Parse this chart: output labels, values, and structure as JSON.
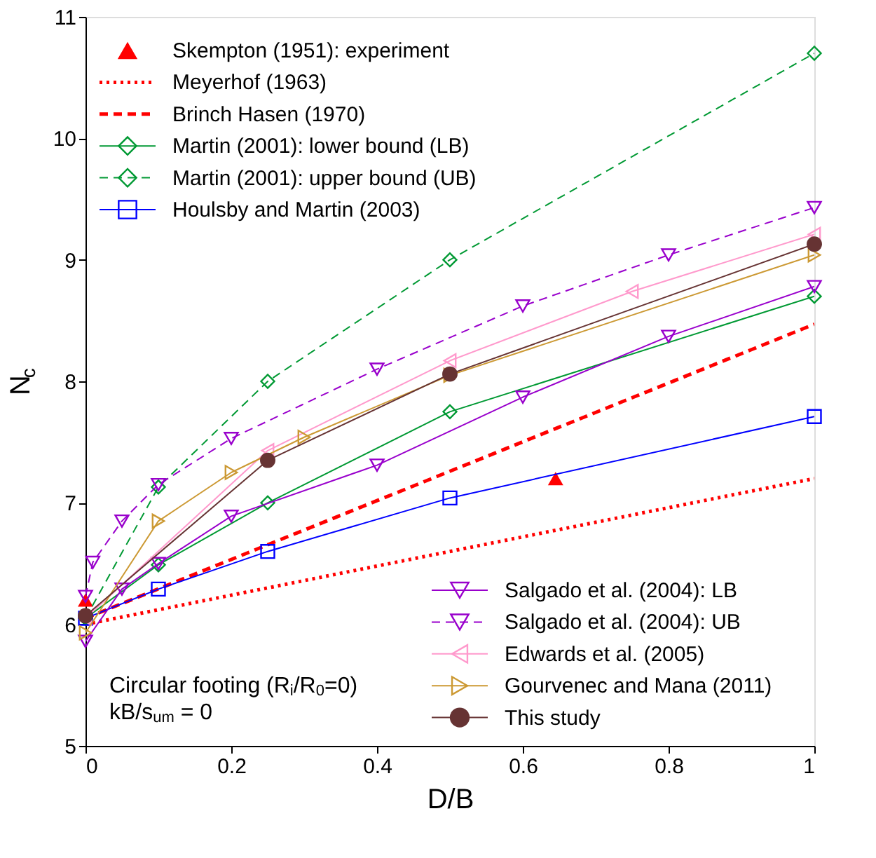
{
  "chart_data": {
    "type": "line",
    "xlabel": "D/B",
    "ylabel": "N$_{c}$",
    "xlim": [
      0,
      1
    ],
    "ylim": [
      5,
      11
    ],
    "xticks": [
      0,
      0.2,
      0.4,
      0.6,
      0.8,
      1
    ],
    "yticks": [
      5,
      6,
      7,
      8,
      9,
      10,
      11
    ],
    "grid": false,
    "legend": [
      "top left",
      "bottom right"
    ],
    "annotations": [
      "Circular footing (R$_{i}$/R$_{0}$=0)",
      "kB/s$_{um}$ = 0"
    ],
    "series": [
      {
        "name": "Skempton (1951): experiment",
        "type": "scatter",
        "marker": "triangle",
        "color": "#ff0000",
        "x": [
          0,
          0.645
        ],
        "values": [
          6.2,
          7.2
        ]
      },
      {
        "name": "Meyerhof (1963)",
        "marker": "none",
        "line_style": "dotted",
        "color": "#ff0000",
        "x": [
          0,
          1
        ],
        "values": [
          6.0,
          7.2
        ]
      },
      {
        "name": "Brinch Hasen (1970)",
        "marker": "none",
        "line_style": "dashed",
        "color": "#ff0000",
        "x": [
          0,
          1
        ],
        "values": [
          6.05,
          8.47
        ]
      },
      {
        "name": "Martin (2001): lower bound (LB)",
        "marker": "diamond",
        "line_style": "solid",
        "color": "#009933",
        "x": [
          0,
          0.1,
          0.25,
          0.5,
          1
        ],
        "values": [
          6.05,
          6.49,
          7.0,
          7.75,
          8.7
        ]
      },
      {
        "name": "Martin (2001): upper bound (UB)",
        "marker": "diamond",
        "line_style": "dashed",
        "color": "#009933",
        "x": [
          0,
          0.1,
          0.25,
          0.5,
          1
        ],
        "values": [
          6.05,
          7.13,
          8.0,
          9.0,
          10.7
        ]
      },
      {
        "name": "Houlsby and Martin (2003)",
        "marker": "square",
        "line_style": "solid",
        "color": "#0000ff",
        "x": [
          0,
          0.1,
          0.25,
          0.5,
          1
        ],
        "values": [
          6.05,
          6.29,
          6.6,
          7.04,
          7.71
        ]
      },
      {
        "name": "Salgado et al. (2004): LB",
        "marker": "triangle-down",
        "line_style": "solid",
        "color": "#9900cc",
        "x": [
          0,
          0.05,
          0.1,
          0.2,
          0.4,
          0.6,
          0.8,
          1
        ],
        "values": [
          5.86,
          6.29,
          6.5,
          6.89,
          7.31,
          7.87,
          8.37,
          8.78
        ]
      },
      {
        "name": "Salgado et al. (2004): UB",
        "marker": "triangle-down",
        "line_style": "dashed",
        "color": "#9900cc",
        "x": [
          0,
          0.01,
          0.05,
          0.1,
          0.2,
          0.4,
          0.6,
          0.8,
          1
        ],
        "values": [
          6.23,
          6.51,
          6.85,
          7.15,
          7.53,
          8.1,
          8.62,
          9.04,
          9.43
        ]
      },
      {
        "name": "Edwards et al. (2005)",
        "marker": "triangle-left",
        "line_style": "solid",
        "color": "#ff99cc",
        "x": [
          0,
          0.25,
          0.5,
          0.75,
          1
        ],
        "values": [
          6.05,
          7.43,
          8.17,
          8.74,
          9.21
        ]
      },
      {
        "name": "Gourvenec and Mana (2011)",
        "marker": "triangle-right",
        "line_style": "solid",
        "color": "#cc9933",
        "x": [
          0,
          0.1,
          0.2,
          0.3,
          0.5,
          1
        ],
        "values": [
          5.93,
          6.85,
          7.25,
          7.54,
          8.05,
          9.04
        ]
      },
      {
        "name": "This study",
        "marker": "circle",
        "line_style": "solid",
        "color": "#663333",
        "x": [
          0,
          0.25,
          0.5,
          1
        ],
        "values": [
          6.07,
          7.35,
          8.06,
          9.13
        ]
      }
    ]
  }
}
